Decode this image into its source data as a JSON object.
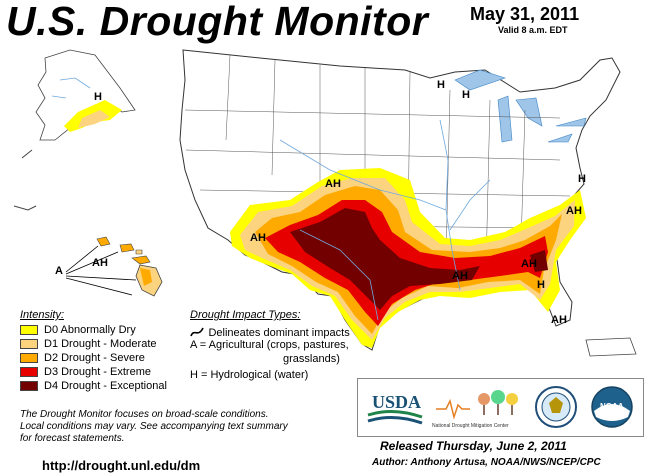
{
  "header": {
    "title": "U.S. Drought Monitor",
    "date": "May 31, 2011",
    "valid": "Valid 8 a.m. EDT"
  },
  "map": {
    "labels": [
      "AH",
      "AH",
      "AH",
      "AH",
      "AH",
      "AH",
      "AH",
      "A",
      "H",
      "H",
      "H",
      "H",
      "H"
    ]
  },
  "legend": {
    "title": "Intensity:",
    "items": [
      {
        "label": "D0 Abnormally Dry",
        "color": "#FFFF00"
      },
      {
        "label": "D1 Drought - Moderate",
        "color": "#FCD37F"
      },
      {
        "label": "D2 Drought - Severe",
        "color": "#FFAA00"
      },
      {
        "label": "D3 Drought - Extreme",
        "color": "#E60000"
      },
      {
        "label": "D4 Drought - Exceptional",
        "color": "#730000"
      }
    ]
  },
  "impacts": {
    "title": "Drought Impact Types:",
    "line1": "Delineates dominant impacts",
    "line2": "A = Agricultural (crops, pastures,",
    "line3": "grasslands)",
    "line4": "H = Hydrological (water)"
  },
  "footer": {
    "note_line1": "The Drought Monitor focuses on broad-scale conditions.",
    "note_line2": "Local conditions may vary. See accompanying text summary",
    "note_line3": "for forecast statements.",
    "url": "http://drought.unl.edu/dm",
    "released": "Released Thursday, June 2, 2011",
    "author": "Author: Anthony Artusa, NOAA/NWS/NCEP/CPC"
  },
  "logos": {
    "usda": "USDA",
    "ndmc": "National Drought Mitigation Center",
    "noaa": "NOAA"
  }
}
